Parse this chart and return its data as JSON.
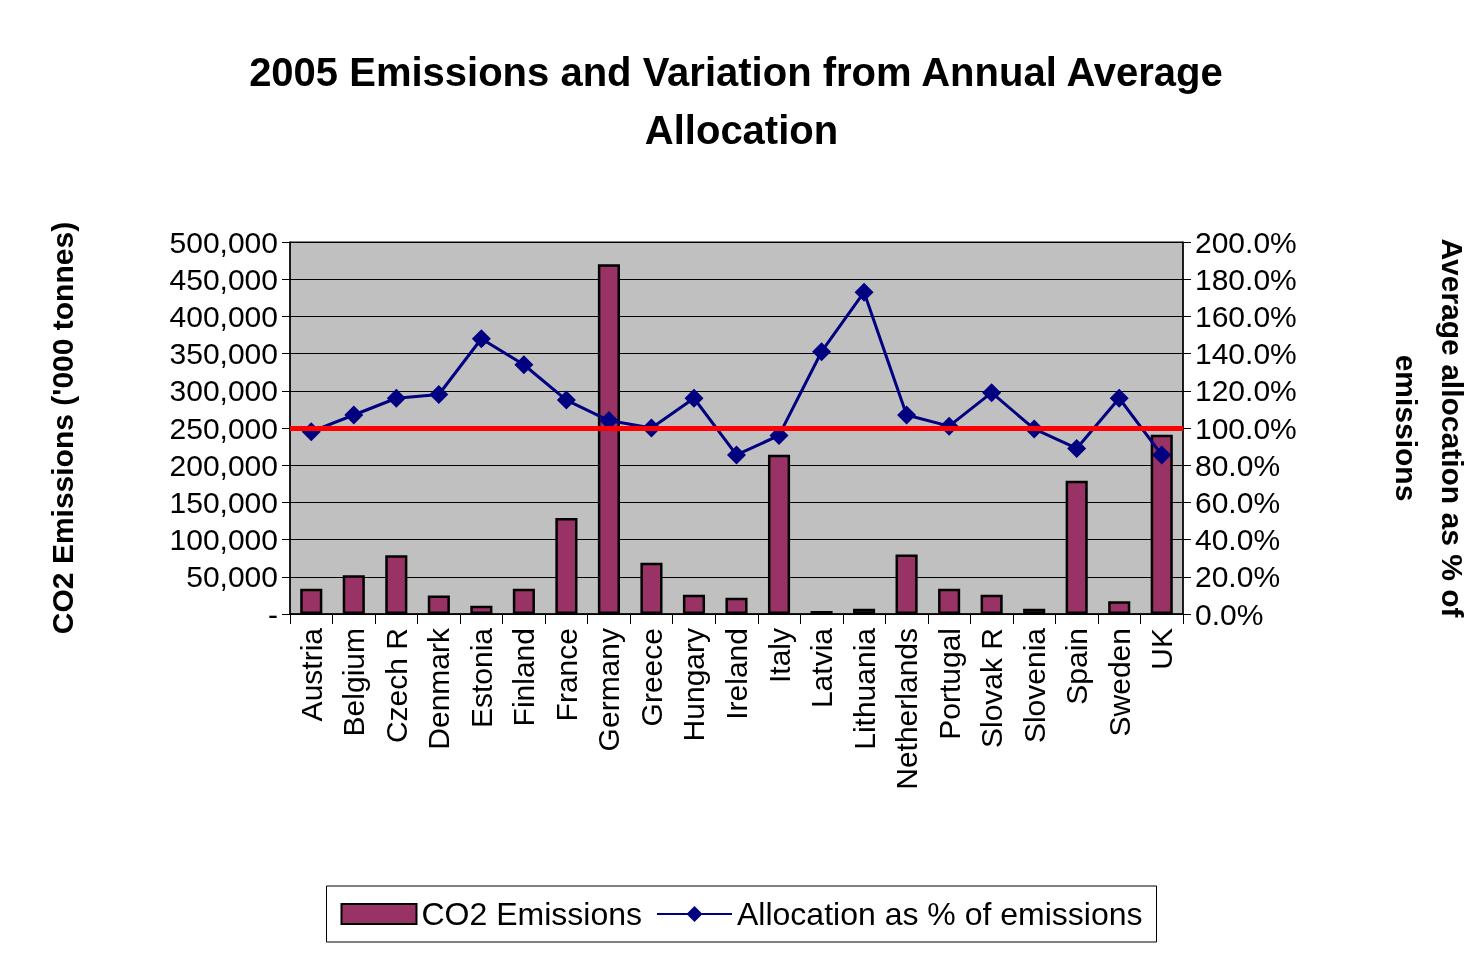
{
  "chart_data": {
    "type": "bar",
    "title": "2005 Emissions and Variation from Annual Average Allocation",
    "ylabel": "CO2 Emissions ('000 tonnes)",
    "y2label": "Average allocation as % of emissions",
    "categories": [
      "Austria",
      "Belgium",
      "Czech R",
      "Denmark",
      "Estonia",
      "Finland",
      "France",
      "Germany",
      "Greece",
      "Hungary",
      "Ireland",
      "Italy",
      "Latvia",
      "Lithuania",
      "Netherlands",
      "Portugal",
      "Slovak R",
      "Slovenia",
      "Spain",
      "Sweden",
      "UK"
    ],
    "series": [
      {
        "name": "CO2 Emissions",
        "color": "#993366",
        "values": [
          34000,
          52000,
          79000,
          25000,
          11000,
          34000,
          129000,
          470000,
          69000,
          26000,
          22000,
          214000,
          4000,
          7000,
          80000,
          34000,
          26000,
          7000,
          179000,
          17000,
          241000
        ]
      },
      {
        "name": "Allocation as % of emissions",
        "type": "line",
        "axis": "y2",
        "color": "#000080",
        "marker": "diamond",
        "values": [
          98,
          107,
          116,
          118,
          148,
          134,
          115,
          104,
          100,
          116,
          85.5,
          96,
          141,
          173,
          107,
          101,
          119,
          99.5,
          89,
          116,
          85.5
        ]
      }
    ],
    "ylim": [
      0,
      500000
    ],
    "yticks": [
      {
        "value": 0,
        "label": "-"
      },
      {
        "value": 50000,
        "label": "50,000"
      },
      {
        "value": 100000,
        "label": "100,000"
      },
      {
        "value": 150000,
        "label": "150,000"
      },
      {
        "value": 200000,
        "label": "200,000"
      },
      {
        "value": 250000,
        "label": "250,000"
      },
      {
        "value": 300000,
        "label": "300,000"
      },
      {
        "value": 350000,
        "label": "350,000"
      },
      {
        "value": 400000,
        "label": "400,000"
      },
      {
        "value": 450000,
        "label": "450,000"
      },
      {
        "value": 500000,
        "label": "500,000"
      }
    ],
    "y2lim": [
      0,
      200
    ],
    "y2ticks": [
      {
        "value": 0,
        "label": "0.0%"
      },
      {
        "value": 20,
        "label": "20.0%"
      },
      {
        "value": 40,
        "label": "40.0%"
      },
      {
        "value": 60,
        "label": "60.0%"
      },
      {
        "value": 80,
        "label": "80.0%"
      },
      {
        "value": 100,
        "label": "100.0%"
      },
      {
        "value": 120,
        "label": "120.0%"
      },
      {
        "value": 140,
        "label": "140.0%"
      },
      {
        "value": 160,
        "label": "160.0%"
      },
      {
        "value": 180,
        "label": "180.0%"
      },
      {
        "value": 200,
        "label": "200.0%"
      }
    ],
    "ref_lines": [
      {
        "axis": "y2",
        "value": 100,
        "color": "#ff0000"
      }
    ],
    "grid": "y",
    "legend": "bottom"
  }
}
